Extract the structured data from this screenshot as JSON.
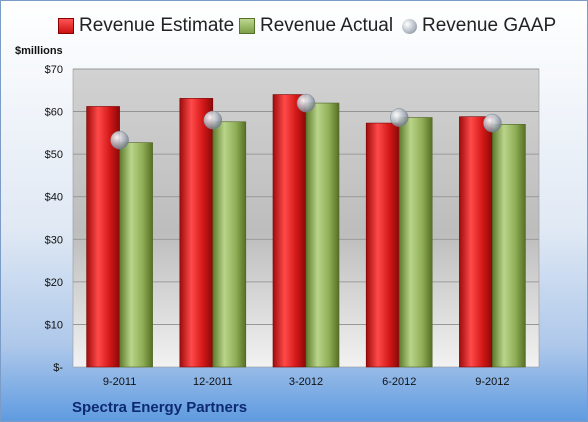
{
  "legend": {
    "estimate": "Revenue Estimate",
    "actual": "Revenue Actual",
    "gaap": "Revenue GAAP"
  },
  "unit_label": "$millions",
  "company": "Spectra Energy Partners",
  "colors": {
    "estimate": "#d81e1e",
    "actual": "#93b25a",
    "gaap": "#b3bac3",
    "plot_bg": "#c8c8c8"
  },
  "chart_data": {
    "type": "bar",
    "categories": [
      "9-2011",
      "12-2011",
      "3-2012",
      "6-2012",
      "9-2012"
    ],
    "series": [
      {
        "name": "Revenue Estimate",
        "values": [
          61.2,
          63.1,
          64.0,
          57.3,
          58.8
        ]
      },
      {
        "name": "Revenue Actual",
        "values": [
          52.7,
          57.6,
          62.0,
          58.6,
          57.0
        ]
      },
      {
        "name": "Revenue GAAP",
        "type": "scatter",
        "values": [
          53.3,
          58.0,
          62.0,
          58.6,
          57.3
        ]
      }
    ],
    "ylim": [
      0,
      70
    ],
    "yticks": [
      0,
      10,
      20,
      30,
      40,
      50,
      60,
      70
    ],
    "ytick_labels": [
      "$-",
      "$10",
      "$20",
      "$30",
      "$40",
      "$50",
      "$60",
      "$70"
    ],
    "ylabel": "$millions",
    "grid": true,
    "legend_position": "top"
  }
}
